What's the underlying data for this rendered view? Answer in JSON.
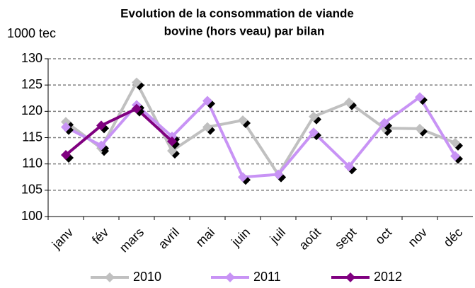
{
  "chart_data": {
    "type": "line",
    "title": [
      "Evolution de la consommation de viande",
      "bovine (hors veau) par bilan"
    ],
    "y_label": "1000 tec",
    "categories": [
      "janv",
      "fév",
      "mars",
      "avril",
      "mai",
      "juin",
      "juil",
      "août",
      "sept",
      "oct",
      "nov",
      "déc"
    ],
    "series": [
      {
        "name": "2010",
        "color": "#c0c0c0",
        "values": [
          118,
          113,
          125.5,
          112.5,
          117,
          118.3,
          108,
          119,
          121.7,
          116.8,
          116.7,
          114
        ]
      },
      {
        "name": "2011",
        "color": "#c893f5",
        "values": [
          117,
          113.5,
          121.2,
          115.2,
          122,
          107.5,
          108,
          116,
          109.5,
          117.8,
          122.7,
          111.5
        ]
      },
      {
        "name": "2012",
        "color": "#800080",
        "values": [
          111.7,
          117.3,
          120.5,
          114.3,
          null,
          null,
          null,
          null,
          null,
          null,
          null,
          null
        ]
      }
    ],
    "ylim": [
      100,
      130
    ],
    "yticks": [
      100,
      105,
      110,
      115,
      120,
      125,
      130
    ],
    "grid": true
  }
}
